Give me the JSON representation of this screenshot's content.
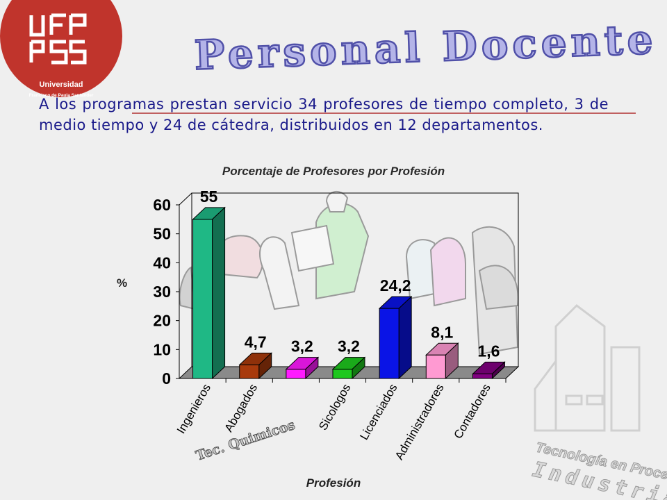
{
  "header": {
    "logo_letters": "UFPS",
    "logo_caption": "Universidad",
    "logo_subcaption": "Francisco de Paula Santander",
    "title": "Personal Docente"
  },
  "intro_text": "A los programas prestan servicio 34 profesores de tiempo completo, 3 de medio tiempo y 24 de cátedra, distribuidos en 12 departamentos.",
  "watermark": {
    "line1": "Tecnología en Procesos",
    "line2": "Industriales"
  },
  "colors": {
    "title": "#8080c8",
    "accent_line": "#c06060",
    "logo_red": "#c0342c",
    "text_blue": "#1a1a8a"
  },
  "chart_data": {
    "type": "bar",
    "title": "Porcentaje de Profesores por Profesión",
    "xlabel": "Profesión",
    "ylabel": "%",
    "ylim": [
      0,
      60
    ],
    "yticks": [
      0,
      10,
      20,
      30,
      40,
      50,
      60
    ],
    "categories": [
      "Ingenieros",
      "Abogados",
      "Tec. Quimicos",
      "Sicologos",
      "Licenciados",
      "Administradores",
      "Contadores"
    ],
    "values": [
      55,
      4.7,
      3.2,
      3.2,
      24.2,
      8.1,
      1.6
    ],
    "data_labels": [
      "55",
      "4,7",
      "3,2",
      "3,2",
      "24,2",
      "8,1",
      "1,6"
    ],
    "bar_colors": [
      "#1fb885",
      "#a83a0c",
      "#ff1aff",
      "#1ec81e",
      "#0a14e6",
      "#ff9ad2",
      "#800080"
    ],
    "grid": false,
    "three_d": true
  }
}
